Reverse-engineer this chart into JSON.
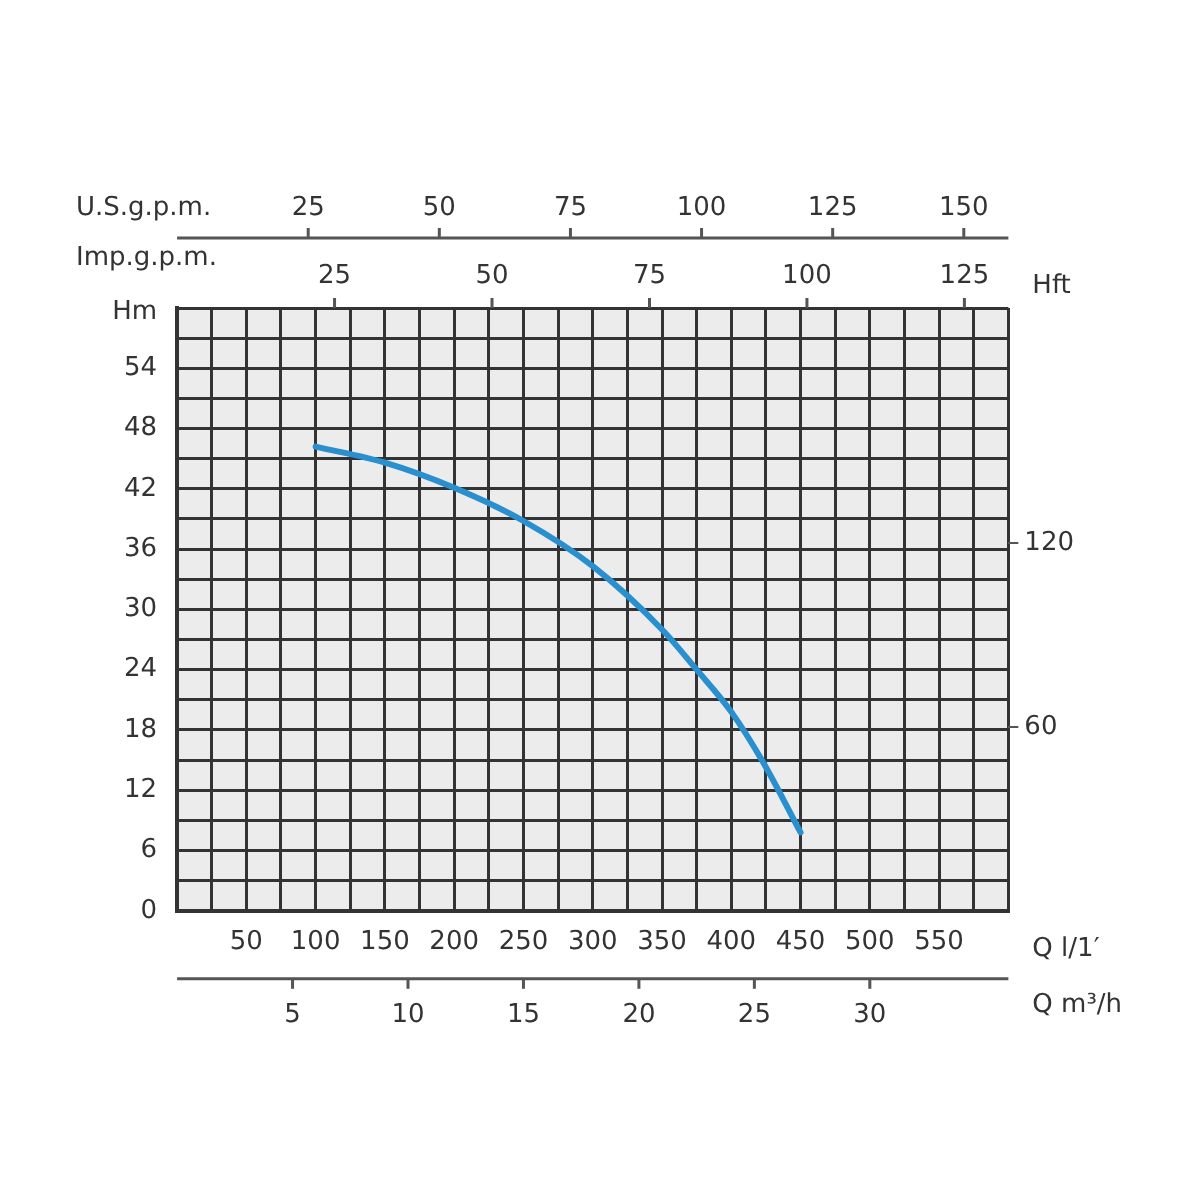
{
  "chart_data": {
    "type": "line",
    "xlabel": "Q l/1′",
    "x2label": "U.S.g.p.m.",
    "ylabel": "Hm",
    "y2label": "Hft",
    "annotations": [
      "Imp.g.p.m.",
      "25",
      "50",
      "75",
      "100",
      "125",
      "Q m³/h",
      "5",
      "10",
      "15",
      "20",
      "25",
      "30"
    ],
    "x": [
      100,
      150,
      200,
      250,
      300,
      350,
      375,
      400,
      425,
      450
    ],
    "series": [
      {
        "color": "#2a8fce",
        "values": [
          46.2,
          44.6,
          42.1,
          38.8,
          34.3,
          28,
          24,
          19.8,
          14.3,
          7.8
        ]
      }
    ],
    "xlim": [
      0,
      600
    ],
    "xticks": [
      {
        "value": 0,
        "label": null
      },
      {
        "value": 25,
        "label": null
      },
      50,
      {
        "value": 75,
        "label": null
      },
      100,
      {
        "value": 125,
        "label": null
      },
      150,
      {
        "value": 175,
        "label": null
      },
      200,
      {
        "value": 225,
        "label": null
      },
      250,
      {
        "value": 275,
        "label": null
      },
      300,
      {
        "value": 325,
        "label": null
      },
      350,
      {
        "value": 375,
        "label": null
      },
      400,
      {
        "value": 425,
        "label": null
      },
      450,
      {
        "value": 475,
        "label": null
      },
      500,
      {
        "value": 525,
        "label": null
      },
      550,
      {
        "value": 575,
        "label": null
      },
      {
        "value": 600,
        "label": null
      }
    ],
    "x2lim": [
      0,
      158.5
    ],
    "x2ticks": [
      25,
      50,
      75,
      100,
      125,
      150
    ],
    "ylim": [
      0,
      60
    ],
    "yticks": [
      0,
      {
        "value": 3,
        "label": null
      },
      6,
      {
        "value": 9,
        "label": null
      },
      12,
      {
        "value": 15,
        "label": null
      },
      18,
      {
        "value": 21,
        "label": null
      },
      24,
      {
        "value": 27,
        "label": null
      },
      30,
      {
        "value": 33,
        "label": null
      },
      36,
      {
        "value": 39,
        "label": null
      },
      42,
      {
        "value": 45,
        "label": null
      },
      48,
      {
        "value": 51,
        "label": null
      },
      54,
      {
        "value": 57,
        "label": null
      },
      {
        "value": 60,
        "label": null
      }
    ],
    "y2lim": [
      0,
      196.85
    ],
    "y2ticks": [
      60,
      120
    ],
    "grid": true,
    "legend": false,
    "marker": "none",
    "line_style": "solid"
  }
}
